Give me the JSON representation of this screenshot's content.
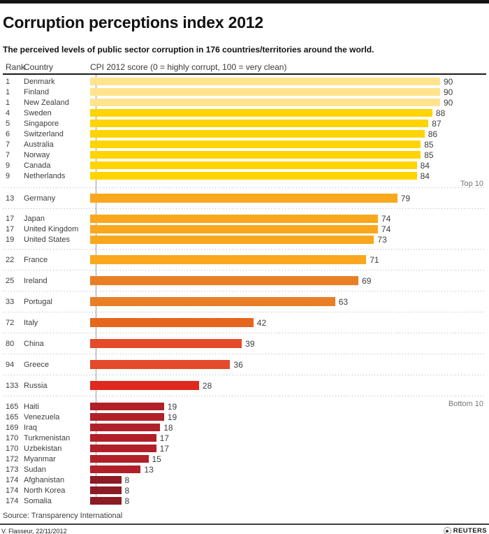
{
  "header": {
    "title": "Corruption perceptions index 2012",
    "subtitle": "The perceived levels of public sector corruption in 176 countries/territories around the world."
  },
  "table": {
    "columns": {
      "rank": "Rank",
      "country": "Country",
      "score": "CPI 2012 score (0 = highly corrupt, 100 = very clean)"
    }
  },
  "chart_data": {
    "type": "bar",
    "orientation": "horizontal",
    "title": "Corruption perceptions index 2012",
    "value_axis": {
      "min": 0,
      "max": 100,
      "max_rendered": 90
    },
    "annotations": {
      "top_group": "Top 10",
      "bottom_group": "Bottom 10"
    },
    "groups": [
      {
        "note": "Top 10",
        "density": "dense first",
        "rows": [
          {
            "rank": "1",
            "country": "Denmark",
            "score": 90,
            "color": "#ffe38d"
          },
          {
            "rank": "1",
            "country": "Finland",
            "score": 90,
            "color": "#ffe38d"
          },
          {
            "rank": "1",
            "country": "New Zealand",
            "score": 90,
            "color": "#ffe38d"
          },
          {
            "rank": "4",
            "country": "Sweden",
            "score": 88,
            "color": "#ffd400"
          },
          {
            "rank": "5",
            "country": "Singapore",
            "score": 87,
            "color": "#ffd400"
          },
          {
            "rank": "6",
            "country": "Switzerland",
            "score": 86,
            "color": "#ffd400"
          },
          {
            "rank": "7",
            "country": "Australia",
            "score": 85,
            "color": "#ffd400"
          },
          {
            "rank": "7",
            "country": "Norway",
            "score": 85,
            "color": "#ffd400"
          },
          {
            "rank": "9",
            "country": "Canada",
            "score": 84,
            "color": "#ffd400"
          },
          {
            "rank": "9",
            "country": "Netherlands",
            "score": 84,
            "color": "#ffd400"
          }
        ]
      },
      {
        "density": "single",
        "rows": [
          {
            "rank": "13",
            "country": "Germany",
            "score": 79,
            "color": "#f9a81e"
          }
        ]
      },
      {
        "density": "multi",
        "rows": [
          {
            "rank": "17",
            "country": "Japan",
            "score": 74,
            "color": "#f9a81e"
          },
          {
            "rank": "17",
            "country": "United Kingdom",
            "score": 74,
            "color": "#f9a81e"
          },
          {
            "rank": "19",
            "country": "United States",
            "score": 73,
            "color": "#f9a81e"
          }
        ]
      },
      {
        "density": "single",
        "rows": [
          {
            "rank": "22",
            "country": "France",
            "score": 71,
            "color": "#f9a81e"
          }
        ]
      },
      {
        "density": "single",
        "rows": [
          {
            "rank": "25",
            "country": "Ireland",
            "score": 69,
            "color": "#e87f27"
          }
        ]
      },
      {
        "density": "single",
        "rows": [
          {
            "rank": "33",
            "country": "Portugal",
            "score": 63,
            "color": "#e87f27"
          }
        ]
      },
      {
        "density": "single",
        "rows": [
          {
            "rank": "72",
            "country": "Italy",
            "score": 42,
            "color": "#e6661f"
          }
        ]
      },
      {
        "density": "single",
        "rows": [
          {
            "rank": "80",
            "country": "China",
            "score": 39,
            "color": "#e34b2b"
          }
        ]
      },
      {
        "density": "single",
        "rows": [
          {
            "rank": "94",
            "country": "Greece",
            "score": 36,
            "color": "#e34b2b"
          }
        ]
      },
      {
        "density": "single",
        "rows": [
          {
            "rank": "133",
            "country": "Russia",
            "score": 28,
            "color": "#df291f"
          }
        ]
      },
      {
        "note": "Bottom 10",
        "density": "dense last",
        "rows": [
          {
            "rank": "165",
            "country": "Haiti",
            "score": 19,
            "color": "#b12028"
          },
          {
            "rank": "165",
            "country": "Venezuela",
            "score": 19,
            "color": "#b12028"
          },
          {
            "rank": "169",
            "country": "Iraq",
            "score": 18,
            "color": "#b12028"
          },
          {
            "rank": "170",
            "country": "Turkmenistan",
            "score": 17,
            "color": "#b12028"
          },
          {
            "rank": "170",
            "country": "Uzbekistan",
            "score": 17,
            "color": "#b12028"
          },
          {
            "rank": "172",
            "country": "Myanmar",
            "score": 15,
            "color": "#b12028"
          },
          {
            "rank": "173",
            "country": "Sudan",
            "score": 13,
            "color": "#b12028"
          },
          {
            "rank": "174",
            "country": "Afghanistan",
            "score": 8,
            "color": "#8c1b25"
          },
          {
            "rank": "174",
            "country": "North Korea",
            "score": 8,
            "color": "#8c1b25"
          },
          {
            "rank": "174",
            "country": "Somalia",
            "score": 8,
            "color": "#8c1b25"
          }
        ]
      }
    ]
  },
  "footer": {
    "source": "Source: Transparency International",
    "credit": "V. Flasseur, 22/11/2012",
    "brand": "REUTERS"
  }
}
